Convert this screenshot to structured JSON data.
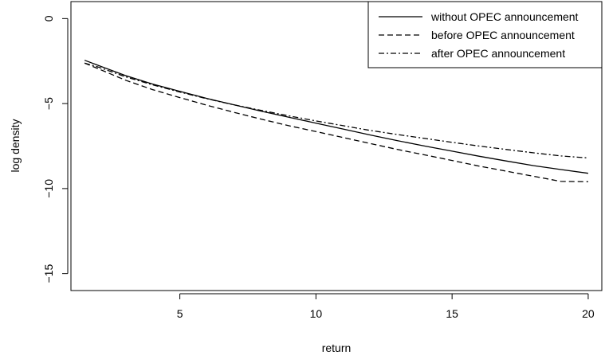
{
  "chart_data": {
    "type": "line",
    "title": "",
    "xlabel": "return",
    "ylabel": "log density",
    "xlim": [
      1.0,
      20.5
    ],
    "ylim": [
      -16.0,
      1.0
    ],
    "xticks": [
      5,
      10,
      15,
      20
    ],
    "yticks": [
      0,
      -5,
      -10,
      -15
    ],
    "grid": false,
    "legend_position": "top-right",
    "series": [
      {
        "name": "without OPEC announcement",
        "style": "solid",
        "x": [
          1.5,
          2,
          3,
          4,
          5,
          6,
          7,
          8,
          9,
          10,
          11,
          12,
          13,
          14,
          15,
          16,
          17,
          18,
          19,
          20
        ],
        "values": [
          -2.45,
          -2.75,
          -3.35,
          -3.85,
          -4.28,
          -4.7,
          -5.08,
          -5.45,
          -5.8,
          -6.15,
          -6.5,
          -6.85,
          -7.18,
          -7.5,
          -7.8,
          -8.1,
          -8.38,
          -8.65,
          -8.88,
          -9.1
        ]
      },
      {
        "name": "before OPEC announcement",
        "style": "dashed",
        "x": [
          1.5,
          2,
          3,
          4,
          5,
          6,
          7,
          8,
          9,
          10,
          11,
          12,
          13,
          14,
          15,
          16,
          17,
          18,
          19,
          20
        ],
        "values": [
          -2.62,
          -2.95,
          -3.62,
          -4.18,
          -4.65,
          -5.1,
          -5.52,
          -5.92,
          -6.3,
          -6.65,
          -7.0,
          -7.35,
          -7.7,
          -8.02,
          -8.35,
          -8.68,
          -8.98,
          -9.28,
          -9.58,
          -9.6
        ]
      },
      {
        "name": "after OPEC announcement",
        "style": "dashdot",
        "x": [
          1.5,
          2,
          3,
          4,
          5,
          6,
          7,
          8,
          9,
          10,
          11,
          12,
          13,
          14,
          15,
          16,
          17,
          18,
          19,
          20
        ],
        "values": [
          -2.62,
          -2.85,
          -3.42,
          -3.9,
          -4.32,
          -4.72,
          -5.08,
          -5.4,
          -5.72,
          -6.02,
          -6.3,
          -6.58,
          -6.82,
          -7.05,
          -7.28,
          -7.5,
          -7.7,
          -7.9,
          -8.08,
          -8.2
        ]
      }
    ]
  }
}
